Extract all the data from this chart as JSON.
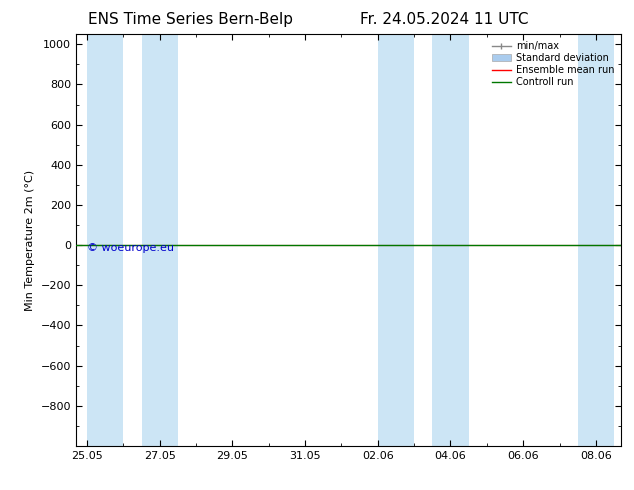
{
  "title_left": "ENS Time Series Bern-Belp",
  "title_right": "Fr. 24.05.2024 11 UTC",
  "ylabel": "Min Temperature 2m (°C)",
  "ylim_top": -1000,
  "ylim_bottom": 1050,
  "yticks": [
    -800,
    -600,
    -400,
    -200,
    0,
    200,
    400,
    600,
    800,
    1000
  ],
  "x_dates": [
    "25.05",
    "27.05",
    "29.05",
    "31.05",
    "02.06",
    "04.06",
    "06.06",
    "08.06"
  ],
  "x_values": [
    0,
    2,
    4,
    6,
    8,
    10,
    12,
    14
  ],
  "shaded_bands": [
    [
      0,
      1
    ],
    [
      1.5,
      2.5
    ],
    [
      8,
      9
    ],
    [
      9.5,
      10.5
    ],
    [
      13.5,
      14.5
    ]
  ],
  "band_color": "#cce5f5",
  "green_line_y": 0,
  "red_line_y": 0,
  "green_color": "#007700",
  "red_color": "#ff0000",
  "watermark": "© woeurope.eu",
  "watermark_color": "#0000cc",
  "background_color": "#ffffff",
  "legend_minmax_color": "#888888",
  "legend_stddev_color": "#aaccee",
  "title_fontsize": 11,
  "axis_fontsize": 8,
  "tick_fontsize": 8,
  "xlim": [
    -0.3,
    14.7
  ]
}
